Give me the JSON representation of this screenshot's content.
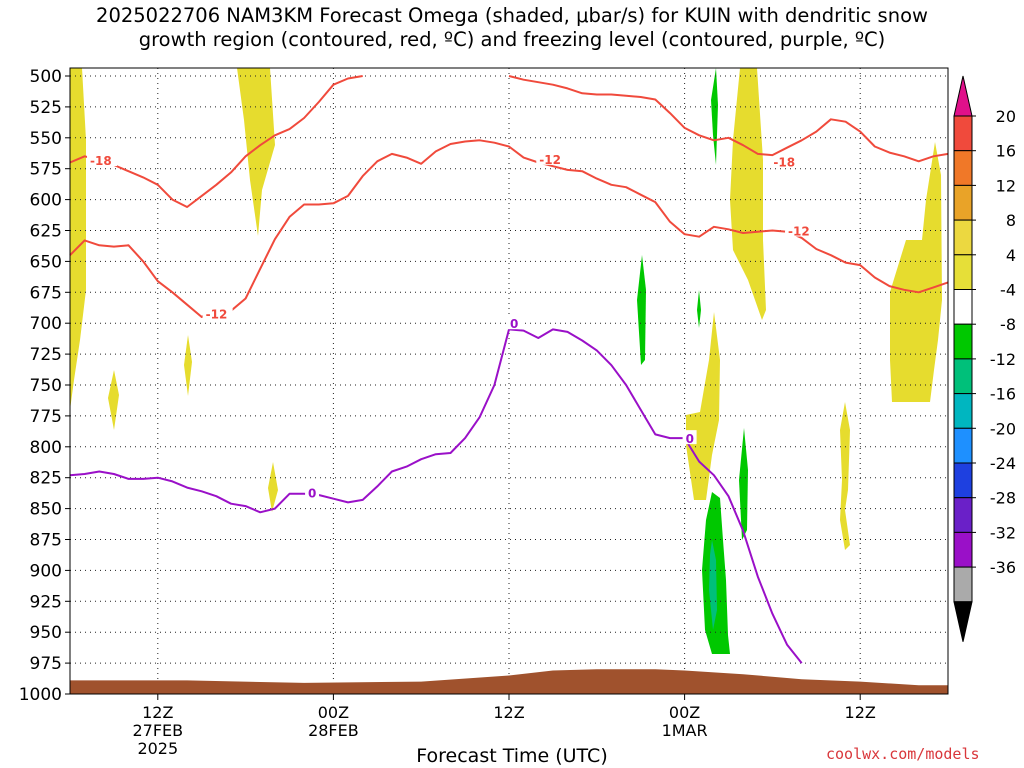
{
  "title": {
    "line1": "2025022706 NAM3KM Forecast Omega (shaded, μbar/s) for KUIN with dendritic snow",
    "line2": "growth region (contoured, red, ºC) and freezing level (contoured, purple, ºC)"
  },
  "credit": "coolwx.com/models",
  "chart_data": {
    "type": "heatmap",
    "subtype": "time-height cross section",
    "xlabel": "Forecast Time (UTC)",
    "ylabel": "",
    "x_range_hours": [
      0,
      60
    ],
    "y_range_hpa": [
      1000,
      500
    ],
    "y_scale": "pressure (inverted)",
    "grid": "dotted",
    "y_ticks": [
      500,
      525,
      550,
      575,
      600,
      625,
      650,
      675,
      700,
      725,
      750,
      775,
      800,
      825,
      850,
      875,
      900,
      925,
      950,
      975,
      1000
    ],
    "x_ticks": [
      {
        "hour": 6,
        "lines": [
          "12Z",
          "27FEB",
          "2025"
        ]
      },
      {
        "hour": 18,
        "lines": [
          "00Z",
          "28FEB"
        ]
      },
      {
        "hour": 30,
        "lines": [
          "12Z"
        ]
      },
      {
        "hour": 42,
        "lines": [
          "00Z",
          "1MAR"
        ]
      },
      {
        "hour": 54,
        "lines": [
          "12Z"
        ]
      }
    ],
    "colorbar": {
      "labels": [
        "20",
        "16",
        "12",
        "8",
        "4",
        "-4",
        "-8",
        "-12",
        "-16",
        "-20",
        "-24",
        "-28",
        "-32",
        "-36"
      ],
      "colors": [
        "#e0108a",
        "#f04a3c",
        "#f07828",
        "#e9a328",
        "#ecd840",
        "#e6df38",
        "#ffffff",
        "#00c800",
        "#00c07a",
        "#00b6c0",
        "#1e90ff",
        "#1e40e0",
        "#6a20c8",
        "#9a10c8",
        "#aaaaaa",
        "#000000"
      ]
    },
    "omega_positive_color": "#e6dc2e",
    "omega_negative_color": "#00c800",
    "omega_strong_negative_color": "#00c07a",
    "terrain_color": "#a0522d",
    "contours": [
      {
        "name": "-18",
        "color": "#f04a3c",
        "label_points": [
          [
            1.3,
            568
          ],
          [
            48.0,
            569
          ]
        ],
        "points": [
          [
            0,
            570
          ],
          [
            1,
            565
          ],
          [
            2,
            568
          ],
          [
            3,
            572
          ],
          [
            4,
            577
          ],
          [
            5,
            582
          ],
          [
            6,
            588
          ],
          [
            7,
            600
          ],
          [
            8,
            606
          ],
          [
            9,
            597
          ],
          [
            10,
            588
          ],
          [
            11,
            578
          ],
          [
            12,
            565
          ],
          [
            13,
            556
          ],
          [
            14,
            548
          ],
          [
            15,
            543
          ],
          [
            16,
            534
          ],
          [
            17,
            521
          ],
          [
            18,
            507
          ],
          [
            19,
            502
          ],
          [
            20,
            500
          ]
        ]
      },
      {
        "name": "-18 (upper)",
        "color": "#f04a3c",
        "label_points": [],
        "points": [
          [
            30,
            500
          ],
          [
            31,
            503
          ],
          [
            32,
            505
          ],
          [
            33,
            507
          ],
          [
            34,
            510
          ],
          [
            35,
            514
          ],
          [
            36,
            515
          ],
          [
            37,
            515
          ],
          [
            38,
            516
          ],
          [
            39,
            517
          ],
          [
            40,
            519
          ],
          [
            41,
            530
          ],
          [
            42,
            542
          ],
          [
            43,
            548
          ],
          [
            44,
            552
          ],
          [
            45,
            550
          ],
          [
            46,
            556
          ],
          [
            47,
            563
          ],
          [
            48,
            564
          ],
          [
            49,
            558
          ],
          [
            50,
            552
          ],
          [
            51,
            545
          ],
          [
            52,
            535
          ],
          [
            53,
            537
          ],
          [
            54,
            545
          ],
          [
            55,
            557
          ],
          [
            56,
            562
          ],
          [
            57,
            565
          ],
          [
            58,
            569
          ],
          [
            59,
            565
          ],
          [
            60,
            563
          ]
        ]
      },
      {
        "name": "-12",
        "color": "#f04a3c",
        "label_points": [
          [
            9.2,
            692
          ],
          [
            32.0,
            567
          ],
          [
            49.0,
            625
          ]
        ],
        "points": [
          [
            0,
            645
          ],
          [
            1,
            633
          ],
          [
            2,
            637
          ],
          [
            3,
            638
          ],
          [
            4,
            637
          ],
          [
            5,
            650
          ],
          [
            6,
            666
          ],
          [
            7,
            675
          ],
          [
            8,
            685
          ],
          [
            9,
            695
          ],
          [
            10,
            688
          ],
          [
            11,
            690
          ],
          [
            12,
            680
          ],
          [
            13,
            656
          ],
          [
            14,
            632
          ],
          [
            15,
            614
          ],
          [
            16,
            604
          ],
          [
            17,
            604
          ],
          [
            18,
            603
          ],
          [
            19,
            597
          ],
          [
            20,
            581
          ],
          [
            21,
            569
          ],
          [
            22,
            563
          ],
          [
            23,
            566
          ],
          [
            24,
            571
          ],
          [
            25,
            561
          ],
          [
            26,
            555
          ],
          [
            27,
            553
          ],
          [
            28,
            552
          ],
          [
            29,
            554
          ],
          [
            30,
            557
          ],
          [
            31,
            566
          ],
          [
            32,
            570
          ],
          [
            33,
            573
          ],
          [
            34,
            576
          ],
          [
            35,
            577
          ],
          [
            36,
            583
          ],
          [
            37,
            588
          ],
          [
            38,
            590
          ],
          [
            39,
            596
          ],
          [
            40,
            602
          ],
          [
            41,
            618
          ],
          [
            42,
            628
          ],
          [
            43,
            630
          ],
          [
            44,
            622
          ],
          [
            45,
            624
          ],
          [
            46,
            627
          ],
          [
            47,
            626
          ],
          [
            48,
            625
          ],
          [
            49,
            626
          ],
          [
            50,
            631
          ],
          [
            51,
            640
          ],
          [
            52,
            645
          ],
          [
            53,
            651
          ],
          [
            54,
            653
          ],
          [
            55,
            663
          ],
          [
            56,
            670
          ],
          [
            57,
            673
          ],
          [
            58,
            675
          ],
          [
            59,
            671
          ],
          [
            60,
            667
          ]
        ]
      },
      {
        "name": "0",
        "color": "#9a10c8",
        "label_points": [
          [
            16.2,
            837
          ],
          [
            30.0,
            700
          ],
          [
            42.0,
            793
          ]
        ],
        "points": [
          [
            0,
            823
          ],
          [
            1,
            822
          ],
          [
            2,
            820
          ],
          [
            3,
            822
          ],
          [
            4,
            826
          ],
          [
            5,
            826
          ],
          [
            6,
            825
          ],
          [
            7,
            828
          ],
          [
            8,
            833
          ],
          [
            9,
            836
          ],
          [
            10,
            840
          ],
          [
            11,
            846
          ],
          [
            12,
            848
          ],
          [
            13,
            853
          ],
          [
            14,
            850
          ],
          [
            15,
            838
          ],
          [
            16,
            838
          ],
          [
            17,
            839
          ],
          [
            18,
            842
          ],
          [
            19,
            845
          ],
          [
            20,
            843
          ],
          [
            21,
            832
          ],
          [
            22,
            820
          ],
          [
            23,
            816
          ],
          [
            24,
            810
          ],
          [
            25,
            806
          ],
          [
            26,
            805
          ],
          [
            27,
            793
          ],
          [
            28,
            776
          ],
          [
            29,
            750
          ],
          [
            30,
            705
          ],
          [
            31,
            706
          ],
          [
            32,
            712
          ],
          [
            33,
            705
          ],
          [
            34,
            707
          ],
          [
            35,
            714
          ],
          [
            36,
            722
          ],
          [
            37,
            734
          ],
          [
            38,
            750
          ],
          [
            39,
            770
          ],
          [
            40,
            790
          ],
          [
            41,
            793
          ],
          [
            42,
            793
          ],
          [
            43,
            812
          ],
          [
            44,
            823
          ],
          [
            45,
            840
          ],
          [
            46,
            868
          ],
          [
            47,
            905
          ],
          [
            48,
            935
          ],
          [
            49,
            960
          ],
          [
            50,
            975
          ]
        ]
      }
    ],
    "terrain_top_hpa": [
      [
        0,
        989
      ],
      [
        8,
        989
      ],
      [
        16,
        991
      ],
      [
        24,
        990
      ],
      [
        30,
        985
      ],
      [
        33,
        981
      ],
      [
        36,
        980
      ],
      [
        40,
        980
      ],
      [
        42,
        981
      ],
      [
        46,
        984
      ],
      [
        50,
        988
      ],
      [
        54,
        990
      ],
      [
        58,
        993
      ],
      [
        60,
        993
      ]
    ]
  }
}
